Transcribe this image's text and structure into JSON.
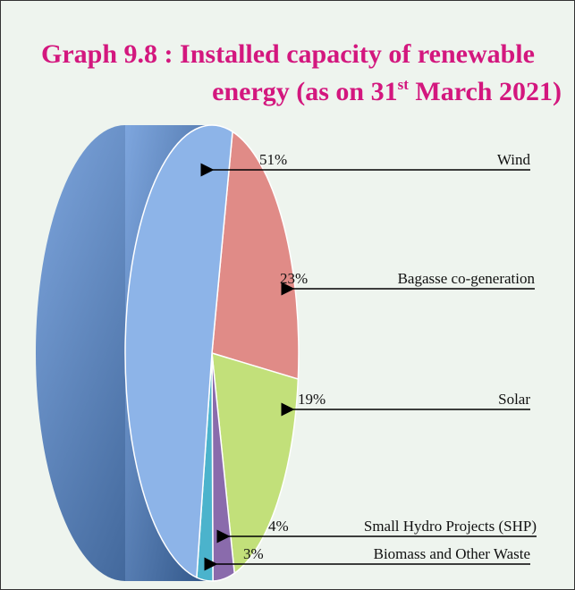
{
  "chart_data": {
    "type": "pie",
    "title": [
      "Graph 9.8 : Installed capacity of renewable",
      "energy",
      "(as on 31",
      "st",
      " March 2021)"
    ],
    "categories": [
      "Bagasse co-generation",
      "Solar",
      "Small Hydro Projects (SHP)",
      "Biomass and Other Waste",
      "Wind"
    ],
    "values": [
      23,
      19,
      4,
      3,
      51
    ],
    "value_labels": [
      "23%",
      "19%",
      "4%",
      "3%",
      "51%"
    ],
    "colors": [
      "#e08b87",
      "#c2e07a",
      "#8a6bac",
      "#4bb3cc",
      "#8db4e8"
    ]
  }
}
